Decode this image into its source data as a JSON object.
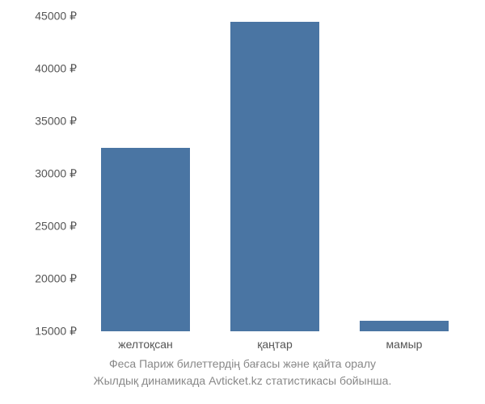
{
  "chart": {
    "type": "bar",
    "categories": [
      "желтоқсан",
      "қаңтар",
      "мамыр"
    ],
    "values": [
      32500,
      44500,
      16000
    ],
    "bar_color": "#4a75a3",
    "bar_width_pct": 23,
    "ylim_min": 15000,
    "ylim_max": 45000,
    "ytick_step": 5000,
    "ytick_suffix": " ₽",
    "background_color": "#ffffff",
    "tick_color": "#555555",
    "tick_fontsize": 14,
    "caption_color": "#888888",
    "caption_fontsize": 14,
    "caption_line1": "Феса Париж билеттердің бағасы және қайта оралу",
    "caption_line2": "Жылдық динамикада Avticket.kz статистикасы бойынша."
  }
}
